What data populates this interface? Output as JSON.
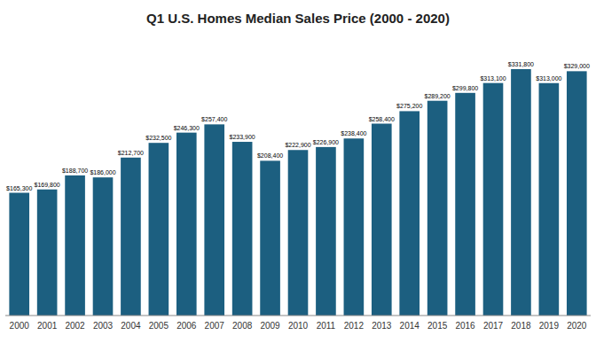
{
  "chart_data": {
    "type": "bar",
    "title": "Q1 U.S. Homes Median Sales Price (2000 - 2020)",
    "categories": [
      "2000",
      "2001",
      "2002",
      "2003",
      "2004",
      "2005",
      "2006",
      "2007",
      "2008",
      "2009",
      "2010",
      "2011",
      "2012",
      "2013",
      "2014",
      "2015",
      "2016",
      "2017",
      "2018",
      "2019",
      "2020"
    ],
    "values": [
      165300,
      169800,
      188700,
      186000,
      212700,
      232500,
      246300,
      257400,
      233900,
      208400,
      222900,
      226900,
      238400,
      258400,
      275200,
      289200,
      299800,
      313100,
      331800,
      313000,
      329000
    ],
    "value_labels": [
      "$165,300",
      "$169,800",
      "$188,700",
      "$186,000",
      "$212,700",
      "$232,500",
      "$246,300",
      "$257,400",
      "$233,900",
      "$208,400",
      "$222,900",
      "$226,900",
      "$238,400",
      "$258,400",
      "$275,200",
      "$289,200",
      "$299,800",
      "$313,100",
      "$331,800",
      "$313,000",
      "$329,000"
    ],
    "color": "#1c5f80",
    "ylim": [
      0,
      370000
    ],
    "data_labels": true,
    "tick_labels": "x"
  }
}
